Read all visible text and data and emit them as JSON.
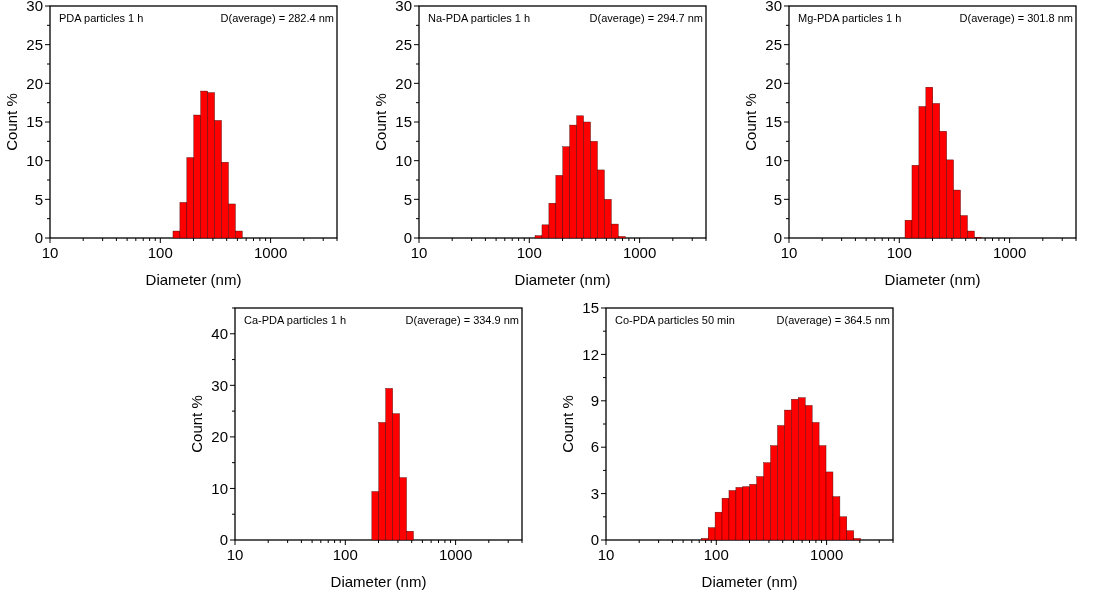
{
  "chart_data": [
    {
      "type": "histogram",
      "xlabel": "Diameter (nm)",
      "ylabel": "Count %",
      "annotations": [
        "PDA particles 1 h",
        "D(average) = 282.4 nm"
      ],
      "log": "x",
      "color": "#ff0000",
      "xlim": [
        10,
        4000
      ],
      "ylim": [
        0,
        30
      ],
      "xticks": [
        10,
        {
          "value": 20,
          "label": null
        },
        {
          "value": 30,
          "label": null
        },
        {
          "value": 40,
          "label": null
        },
        {
          "value": 50,
          "label": null
        },
        {
          "value": 60,
          "label": null
        },
        {
          "value": 70,
          "label": null
        },
        {
          "value": 80,
          "label": null
        },
        {
          "value": 90,
          "label": null
        },
        100,
        {
          "value": 200,
          "label": null
        },
        {
          "value": 300,
          "label": null
        },
        {
          "value": 400,
          "label": null
        },
        {
          "value": 500,
          "label": null
        },
        {
          "value": 600,
          "label": null
        },
        {
          "value": 700,
          "label": null
        },
        {
          "value": 800,
          "label": null
        },
        {
          "value": 900,
          "label": null
        },
        1000,
        {
          "value": 2000,
          "label": null
        },
        {
          "value": 3000,
          "label": null
        },
        {
          "value": 4000,
          "label": null
        }
      ],
      "yticks": [
        0,
        {
          "value": 2.5,
          "label": null
        },
        5,
        {
          "value": 7.5,
          "label": null
        },
        10,
        {
          "value": 12.5,
          "label": null
        },
        15,
        {
          "value": 17.5,
          "label": null
        },
        20,
        {
          "value": 22.5,
          "label": null
        },
        25,
        {
          "value": 27.5,
          "label": null
        },
        30
      ],
      "bins": [
        130.3,
        150.6,
        174.1,
        201.2,
        232.5,
        268.7,
        310.5,
        358.9,
        414.8,
        479.4,
        553.9
      ],
      "values": [
        0.9,
        4.6,
        10.4,
        15.9,
        19.0,
        18.8,
        15.2,
        9.8,
        4.4,
        0.9
      ]
    },
    {
      "type": "histogram",
      "xlabel": "Diameter (nm)",
      "ylabel": "Count %",
      "annotations": [
        "Na-PDA particles 1 h",
        "D(average) = 294.7 nm"
      ],
      "log": "x",
      "color": "#ff0000",
      "xlim": [
        10,
        4000
      ],
      "ylim": [
        0,
        30
      ],
      "xticks": [
        10,
        {
          "value": 20,
          "label": null
        },
        {
          "value": 30,
          "label": null
        },
        {
          "value": 40,
          "label": null
        },
        {
          "value": 50,
          "label": null
        },
        {
          "value": 60,
          "label": null
        },
        {
          "value": 70,
          "label": null
        },
        {
          "value": 80,
          "label": null
        },
        {
          "value": 90,
          "label": null
        },
        100,
        {
          "value": 200,
          "label": null
        },
        {
          "value": 300,
          "label": null
        },
        {
          "value": 400,
          "label": null
        },
        {
          "value": 500,
          "label": null
        },
        {
          "value": 600,
          "label": null
        },
        {
          "value": 700,
          "label": null
        },
        {
          "value": 800,
          "label": null
        },
        {
          "value": 900,
          "label": null
        },
        1000,
        {
          "value": 2000,
          "label": null
        },
        {
          "value": 3000,
          "label": null
        },
        {
          "value": 4000,
          "label": null
        }
      ],
      "yticks": [
        0,
        {
          "value": 2.5,
          "label": null
        },
        5,
        {
          "value": 7.5,
          "label": null
        },
        10,
        {
          "value": 12.5,
          "label": null
        },
        15,
        {
          "value": 17.5,
          "label": null
        },
        20,
        {
          "value": 22.5,
          "label": null
        },
        25,
        {
          "value": 27.5,
          "label": null
        },
        30
      ],
      "bins": [
        112.7,
        130.3,
        150.6,
        174.1,
        201.2,
        232.5,
        268.7,
        310.5,
        358.9,
        414.8,
        479.4,
        553.9,
        640.2,
        739.9
      ],
      "values": [
        0.3,
        1.7,
        4.5,
        8.1,
        11.8,
        14.6,
        15.8,
        15.0,
        12.5,
        8.8,
        5.0,
        1.8,
        0.2
      ]
    },
    {
      "type": "histogram",
      "xlabel": "Diameter (nm)",
      "ylabel": "Count %",
      "annotations": [
        "Mg-PDA particles 1 h",
        "D(average) = 301.8 nm"
      ],
      "log": "x",
      "color": "#ff0000",
      "xlim": [
        10,
        4000
      ],
      "ylim": [
        0,
        30
      ],
      "xticks": [
        10,
        {
          "value": 20,
          "label": null
        },
        {
          "value": 30,
          "label": null
        },
        {
          "value": 40,
          "label": null
        },
        {
          "value": 50,
          "label": null
        },
        {
          "value": 60,
          "label": null
        },
        {
          "value": 70,
          "label": null
        },
        {
          "value": 80,
          "label": null
        },
        {
          "value": 90,
          "label": null
        },
        100,
        {
          "value": 200,
          "label": null
        },
        {
          "value": 300,
          "label": null
        },
        {
          "value": 400,
          "label": null
        },
        {
          "value": 500,
          "label": null
        },
        {
          "value": 600,
          "label": null
        },
        {
          "value": 700,
          "label": null
        },
        {
          "value": 800,
          "label": null
        },
        {
          "value": 900,
          "label": null
        },
        1000,
        {
          "value": 2000,
          "label": null
        },
        {
          "value": 3000,
          "label": null
        },
        {
          "value": 4000,
          "label": null
        }
      ],
      "yticks": [
        0,
        {
          "value": 2.5,
          "label": null
        },
        5,
        {
          "value": 7.5,
          "label": null
        },
        10,
        {
          "value": 12.5,
          "label": null
        },
        15,
        {
          "value": 17.5,
          "label": null
        },
        20,
        {
          "value": 22.5,
          "label": null
        },
        25,
        {
          "value": 27.5,
          "label": null
        },
        30
      ],
      "bins": [
        112.7,
        130.3,
        150.6,
        174.1,
        201.2,
        232.5,
        268.7,
        310.5,
        358.9,
        414.8,
        479.4,
        553.9
      ],
      "values": [
        2.3,
        9.4,
        17.0,
        19.5,
        17.4,
        13.8,
        10.1,
        6.2,
        2.9,
        0.9,
        0.1
      ]
    },
    {
      "type": "histogram",
      "xlabel": "Diameter (nm)",
      "ylabel": "Count %",
      "annotations": [
        "Ca-PDA particles 1 h",
        "D(average) = 334.9 nm"
      ],
      "log": "x",
      "color": "#ff0000",
      "xlim": [
        10,
        4000
      ],
      "ylim": [
        0,
        45
      ],
      "xticks": [
        10,
        {
          "value": 20,
          "label": null
        },
        {
          "value": 30,
          "label": null
        },
        {
          "value": 40,
          "label": null
        },
        {
          "value": 50,
          "label": null
        },
        {
          "value": 60,
          "label": null
        },
        {
          "value": 70,
          "label": null
        },
        {
          "value": 80,
          "label": null
        },
        {
          "value": 90,
          "label": null
        },
        100,
        {
          "value": 200,
          "label": null
        },
        {
          "value": 300,
          "label": null
        },
        {
          "value": 400,
          "label": null
        },
        {
          "value": 500,
          "label": null
        },
        {
          "value": 600,
          "label": null
        },
        {
          "value": 700,
          "label": null
        },
        {
          "value": 800,
          "label": null
        },
        {
          "value": 900,
          "label": null
        },
        1000,
        {
          "value": 2000,
          "label": null
        },
        {
          "value": 3000,
          "label": null
        },
        {
          "value": 4000,
          "label": null
        }
      ],
      "yticks": [
        0,
        {
          "value": 5,
          "label": null
        },
        10,
        {
          "value": 15,
          "label": null
        },
        20,
        {
          "value": 25,
          "label": null
        },
        30,
        {
          "value": 35,
          "label": null
        },
        40,
        {
          "value": 45,
          "label": null
        }
      ],
      "bins": [
        174.1,
        201.2,
        232.5,
        268.7,
        310.5,
        358.9,
        414.8
      ],
      "values": [
        9.4,
        22.8,
        29.4,
        24.5,
        12.1,
        1.7
      ]
    },
    {
      "type": "histogram",
      "xlabel": "Diameter (nm)",
      "ylabel": "Count %",
      "annotations": [
        "Co-PDA particles 50 min",
        "D(average) = 364.5 nm"
      ],
      "log": "x",
      "color": "#ff0000",
      "xlim": [
        10,
        4000
      ],
      "ylim": [
        0,
        15
      ],
      "xticks": [
        10,
        {
          "value": 20,
          "label": null
        },
        {
          "value": 30,
          "label": null
        },
        {
          "value": 40,
          "label": null
        },
        {
          "value": 50,
          "label": null
        },
        {
          "value": 60,
          "label": null
        },
        {
          "value": 70,
          "label": null
        },
        {
          "value": 80,
          "label": null
        },
        {
          "value": 90,
          "label": null
        },
        100,
        {
          "value": 200,
          "label": null
        },
        {
          "value": 300,
          "label": null
        },
        {
          "value": 400,
          "label": null
        },
        {
          "value": 500,
          "label": null
        },
        {
          "value": 600,
          "label": null
        },
        {
          "value": 700,
          "label": null
        },
        {
          "value": 800,
          "label": null
        },
        {
          "value": 900,
          "label": null
        },
        1000,
        {
          "value": 2000,
          "label": null
        },
        {
          "value": 3000,
          "label": null
        },
        {
          "value": 4000,
          "label": null
        }
      ],
      "yticks": [
        0,
        {
          "value": 1.5,
          "label": null
        },
        3,
        {
          "value": 4.5,
          "label": null
        },
        6,
        {
          "value": 7.5,
          "label": null
        },
        9,
        {
          "value": 10.5,
          "label": null
        },
        12,
        {
          "value": 13.5,
          "label": null
        },
        15
      ],
      "bins": [
        73.1,
        84.4,
        97.5,
        112.7,
        130.3,
        150.6,
        174.1,
        201.2,
        232.5,
        268.7,
        310.5,
        358.9,
        414.8,
        479.4,
        553.9,
        640.2,
        739.9,
        855.1,
        988.2,
        1142,
        1320,
        1525,
        1763,
        2037
      ],
      "values": [
        0.1,
        0.8,
        1.8,
        2.7,
        3.2,
        3.4,
        3.45,
        3.6,
        4.1,
        5.0,
        6.1,
        7.4,
        8.4,
        9.1,
        9.2,
        8.7,
        7.6,
        6.1,
        4.4,
        2.8,
        1.5,
        0.6,
        0.1
      ]
    }
  ]
}
